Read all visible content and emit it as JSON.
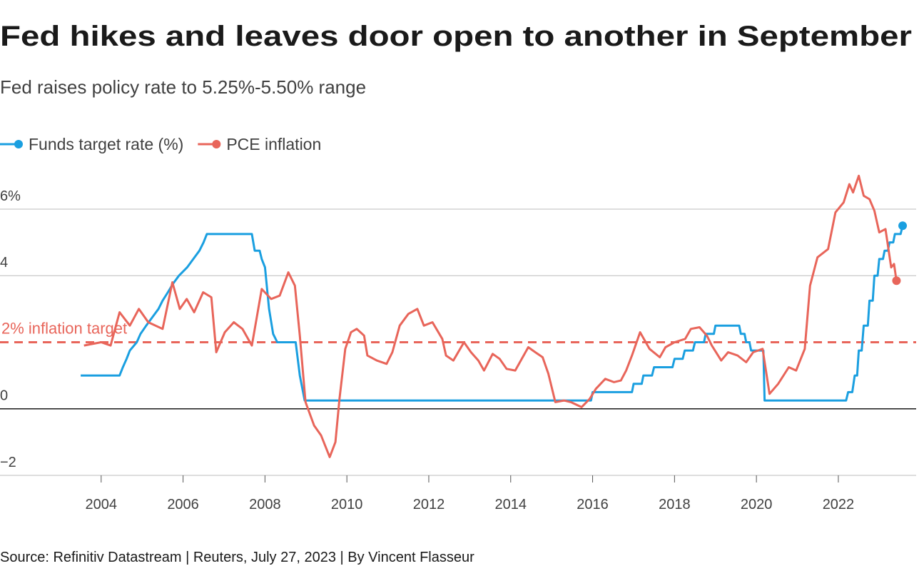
{
  "chart_data": {
    "type": "line",
    "title": "Fed hikes and leaves door open to another in September",
    "subtitle": "Fed raises policy rate to 5.25%-5.50% range",
    "source": "Source: Refinitiv Datastream | Reuters, July 27, 2023 | By Vincent Flasseur",
    "xlim": [
      2001.53,
      2023.9
    ],
    "xticks": [
      2004,
      2006,
      2008,
      2010,
      2012,
      2014,
      2016,
      2018,
      2020,
      2022
    ],
    "ylim": [
      -2,
      7.2
    ],
    "yticks": [
      {
        "value": 6,
        "label": "6%"
      },
      4,
      0,
      {
        "value": -2,
        "label": "−2"
      }
    ],
    "grid": true,
    "legend": "top-left",
    "annotations": [
      {
        "text": "2% inflation target",
        "y": 2,
        "color": "#e8655a"
      }
    ],
    "series": [
      {
        "name": "Funds target rate (%)",
        "color": "#1a9fe0",
        "x": [
          2003.5,
          2004.45,
          2004.53,
          2004.62,
          2004.7,
          2004.87,
          2004.96,
          2005.1,
          2005.25,
          2005.4,
          2005.5,
          2005.63,
          2005.75,
          2005.9,
          2006.1,
          2006.25,
          2006.4,
          2006.5,
          2006.58,
          2007.68,
          2007.75,
          2007.87,
          2007.92,
          2008.0,
          2008.06,
          2008.1,
          2008.2,
          2008.3,
          2008.75,
          2008.8,
          2008.85,
          2008.97,
          2015.96,
          2016.0,
          2016.96,
          2017.0,
          2017.2,
          2017.24,
          2017.45,
          2017.5,
          2017.95,
          2018.0,
          2018.2,
          2018.25,
          2018.45,
          2018.5,
          2018.72,
          2018.76,
          2018.96,
          2019.0,
          2019.58,
          2019.62,
          2019.71,
          2019.75,
          2019.83,
          2019.87,
          2020.17,
          2020.2,
          2022.19,
          2022.24,
          2022.34,
          2022.4,
          2022.46,
          2022.5,
          2022.57,
          2022.62,
          2022.72,
          2022.76,
          2022.84,
          2022.88,
          2022.96,
          2023.0,
          2023.09,
          2023.13,
          2023.21,
          2023.25,
          2023.34,
          2023.38,
          2023.52,
          2023.57
        ],
        "values": [
          1.0,
          1.0,
          1.25,
          1.5,
          1.75,
          2.0,
          2.25,
          2.5,
          2.75,
          3.0,
          3.25,
          3.5,
          3.75,
          4.0,
          4.25,
          4.5,
          4.75,
          5.0,
          5.25,
          5.25,
          4.75,
          4.75,
          4.5,
          4.25,
          3.5,
          3.0,
          2.25,
          2.0,
          2.0,
          1.5,
          1.0,
          0.25,
          0.25,
          0.5,
          0.5,
          0.75,
          0.75,
          1.0,
          1.0,
          1.25,
          1.25,
          1.5,
          1.5,
          1.75,
          1.75,
          2.0,
          2.0,
          2.25,
          2.25,
          2.5,
          2.5,
          2.25,
          2.25,
          2.0,
          2.0,
          1.75,
          1.75,
          0.25,
          0.25,
          0.5,
          0.5,
          1.0,
          1.0,
          1.75,
          1.75,
          2.5,
          2.5,
          3.25,
          3.25,
          4.0,
          4.0,
          4.5,
          4.5,
          4.75,
          4.75,
          5.0,
          5.0,
          5.25,
          5.25,
          5.5
        ]
      },
      {
        "name": "PCE inflation",
        "color": "#e8655a",
        "x": [
          2003.58,
          2004.0,
          2004.23,
          2004.45,
          2004.7,
          2004.92,
          2005.15,
          2005.5,
          2005.74,
          2005.92,
          2006.09,
          2006.27,
          2006.49,
          2006.69,
          2006.81,
          2007.02,
          2007.24,
          2007.45,
          2007.68,
          2007.92,
          2008.15,
          2008.36,
          2008.57,
          2008.73,
          2008.85,
          2008.99,
          2009.2,
          2009.37,
          2009.58,
          2009.72,
          2009.82,
          2009.96,
          2010.1,
          2010.24,
          2010.42,
          2010.5,
          2010.73,
          2010.97,
          2011.11,
          2011.29,
          2011.5,
          2011.72,
          2011.88,
          2012.09,
          2012.33,
          2012.42,
          2012.6,
          2012.86,
          2013.03,
          2013.21,
          2013.35,
          2013.56,
          2013.73,
          2013.9,
          2014.11,
          2014.43,
          2014.6,
          2014.78,
          2014.92,
          2015.09,
          2015.3,
          2015.47,
          2015.73,
          2015.93,
          2016.08,
          2016.31,
          2016.52,
          2016.69,
          2016.82,
          2016.96,
          2017.16,
          2017.39,
          2017.64,
          2017.78,
          2018.0,
          2018.26,
          2018.4,
          2018.61,
          2018.79,
          2018.91,
          2019.14,
          2019.31,
          2019.54,
          2019.75,
          2019.92,
          2020.15,
          2020.32,
          2020.53,
          2020.79,
          2020.97,
          2021.18,
          2021.31,
          2021.49,
          2021.75,
          2021.93,
          2022.13,
          2022.27,
          2022.36,
          2022.5,
          2022.62,
          2022.76,
          2022.88,
          2023.0,
          2023.15,
          2023.29,
          2023.36,
          2023.42
        ],
        "values": [
          1.9,
          2.0,
          1.9,
          2.9,
          2.5,
          3.0,
          2.6,
          2.4,
          3.8,
          3.0,
          3.3,
          2.9,
          3.5,
          3.35,
          1.7,
          2.3,
          2.6,
          2.4,
          1.9,
          3.6,
          3.3,
          3.4,
          4.1,
          3.7,
          2.2,
          0.2,
          -0.5,
          -0.8,
          -1.45,
          -1.0,
          0.3,
          1.8,
          2.3,
          2.4,
          2.2,
          1.6,
          1.45,
          1.35,
          1.7,
          2.5,
          2.85,
          3.0,
          2.5,
          2.6,
          2.1,
          1.6,
          1.45,
          2.0,
          1.7,
          1.45,
          1.15,
          1.65,
          1.5,
          1.2,
          1.15,
          1.85,
          1.7,
          1.55,
          1.05,
          0.2,
          0.25,
          0.2,
          0.05,
          0.3,
          0.6,
          0.9,
          0.8,
          0.85,
          1.15,
          1.6,
          2.3,
          1.8,
          1.55,
          1.85,
          2.0,
          2.1,
          2.4,
          2.45,
          2.2,
          1.9,
          1.45,
          1.7,
          1.6,
          1.4,
          1.7,
          1.8,
          0.45,
          0.75,
          1.25,
          1.15,
          1.8,
          3.7,
          4.55,
          4.8,
          5.9,
          6.2,
          6.75,
          6.5,
          7.0,
          6.4,
          6.3,
          5.95,
          5.3,
          5.4,
          4.25,
          4.35,
          3.85
        ]
      }
    ]
  }
}
